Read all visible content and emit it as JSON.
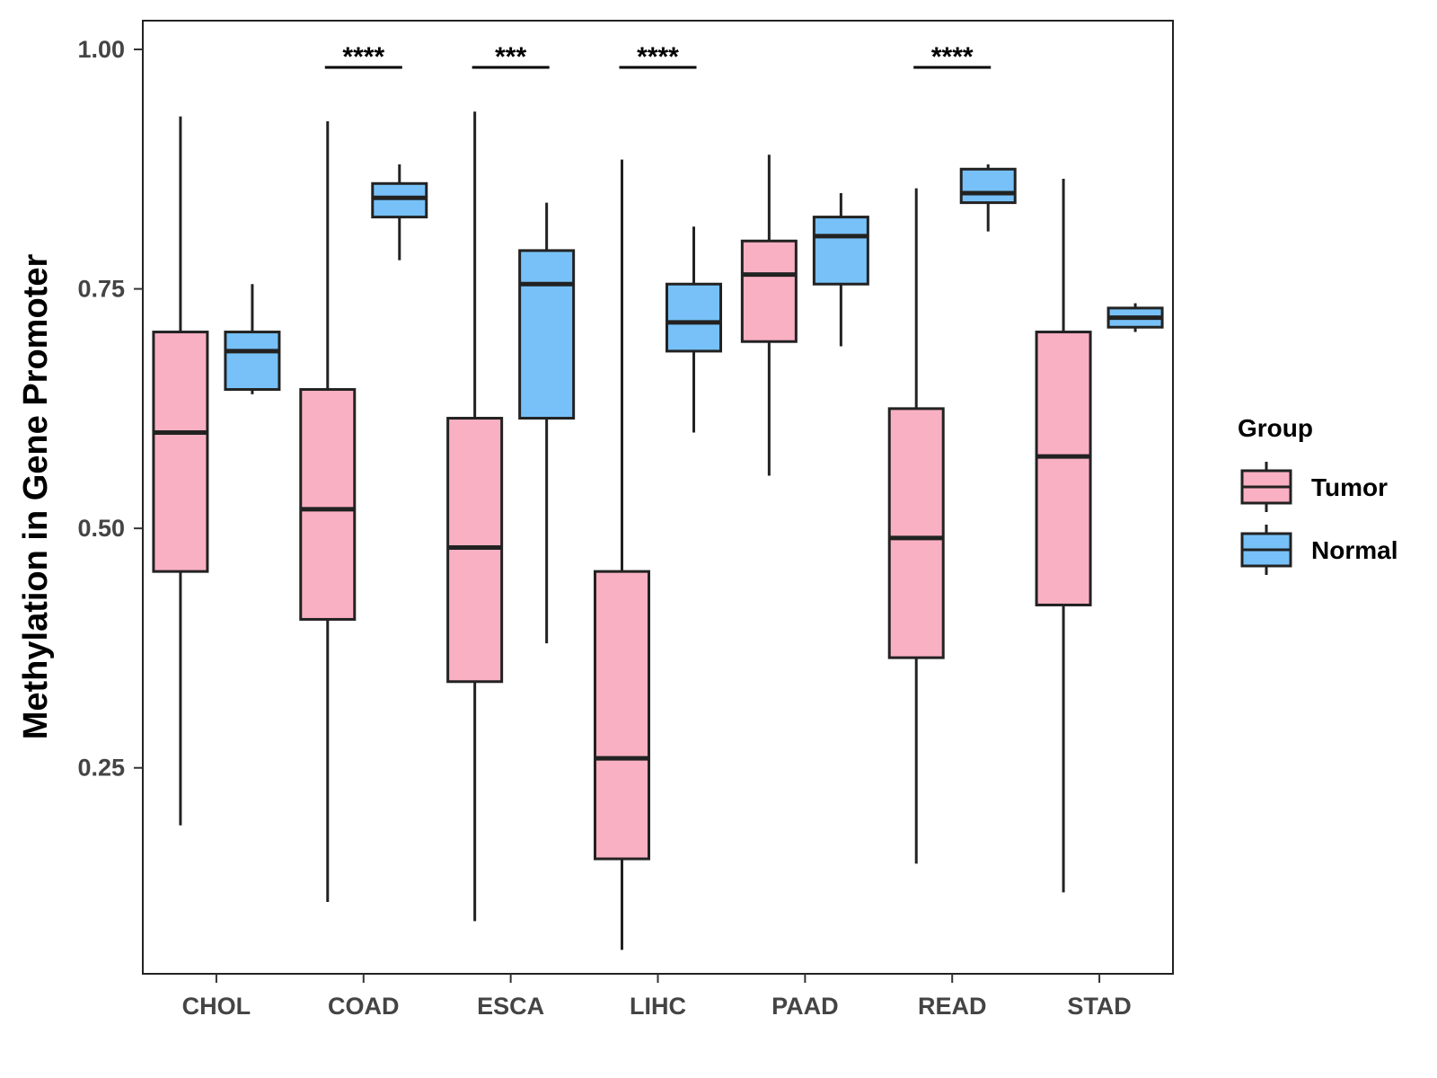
{
  "chart_data": {
    "type": "boxplot",
    "title": "",
    "xlabel": "",
    "ylabel": "Methylation in Gene Promoter",
    "ylim": [
      0.035,
      1.03
    ],
    "yticks": [
      0.25,
      0.5,
      0.75,
      1.0
    ],
    "ytick_labels": [
      "0.25",
      "0.50",
      "0.75",
      "1.00"
    ],
    "grid": false,
    "categories": [
      "CHOL",
      "COAD",
      "ESCA",
      "LIHC",
      "PAAD",
      "READ",
      "STAD"
    ],
    "legend": {
      "title": "Group",
      "position": "right",
      "entries": [
        {
          "label": "Tumor",
          "color": "#FAB0C3"
        },
        {
          "label": "Normal",
          "color": "#77C1F8"
        }
      ]
    },
    "series": [
      {
        "name": "Tumor",
        "color": "#FAB0C3",
        "boxes": [
          {
            "category": "CHOL",
            "whisker_low": 0.19,
            "q1": 0.455,
            "median": 0.6,
            "q3": 0.705,
            "whisker_high": 0.93
          },
          {
            "category": "COAD",
            "whisker_low": 0.11,
            "q1": 0.405,
            "median": 0.52,
            "q3": 0.645,
            "whisker_high": 0.925
          },
          {
            "category": "ESCA",
            "whisker_low": 0.09,
            "q1": 0.34,
            "median": 0.48,
            "q3": 0.615,
            "whisker_high": 0.935
          },
          {
            "category": "LIHC",
            "whisker_low": 0.06,
            "q1": 0.155,
            "median": 0.26,
            "q3": 0.455,
            "whisker_high": 0.885
          },
          {
            "category": "PAAD",
            "whisker_low": 0.555,
            "q1": 0.695,
            "median": 0.765,
            "q3": 0.8,
            "whisker_high": 0.89
          },
          {
            "category": "READ",
            "whisker_low": 0.15,
            "q1": 0.365,
            "median": 0.49,
            "q3": 0.625,
            "whisker_high": 0.855
          },
          {
            "category": "STAD",
            "whisker_low": 0.12,
            "q1": 0.42,
            "median": 0.575,
            "q3": 0.705,
            "whisker_high": 0.865
          }
        ]
      },
      {
        "name": "Normal",
        "color": "#77C1F8",
        "boxes": [
          {
            "category": "CHOL",
            "whisker_low": 0.64,
            "q1": 0.645,
            "median": 0.685,
            "q3": 0.705,
            "whisker_high": 0.755
          },
          {
            "category": "COAD",
            "whisker_low": 0.78,
            "q1": 0.825,
            "median": 0.845,
            "q3": 0.86,
            "whisker_high": 0.88
          },
          {
            "category": "ESCA",
            "whisker_low": 0.38,
            "q1": 0.615,
            "median": 0.755,
            "q3": 0.79,
            "whisker_high": 0.84
          },
          {
            "category": "LIHC",
            "whisker_low": 0.6,
            "q1": 0.685,
            "median": 0.715,
            "q3": 0.755,
            "whisker_high": 0.815
          },
          {
            "category": "PAAD",
            "whisker_low": 0.69,
            "q1": 0.755,
            "median": 0.805,
            "q3": 0.825,
            "whisker_high": 0.85
          },
          {
            "category": "READ",
            "whisker_low": 0.81,
            "q1": 0.84,
            "median": 0.85,
            "q3": 0.875,
            "whisker_high": 0.88
          },
          {
            "category": "STAD",
            "whisker_low": 0.705,
            "q1": 0.71,
            "median": 0.72,
            "q3": 0.73,
            "whisker_high": 0.735
          }
        ]
      }
    ],
    "annotations": [
      {
        "category": "COAD",
        "label": "****"
      },
      {
        "category": "ESCA",
        "label": "***"
      },
      {
        "category": "LIHC",
        "label": "****"
      },
      {
        "category": "READ",
        "label": "****"
      }
    ]
  }
}
